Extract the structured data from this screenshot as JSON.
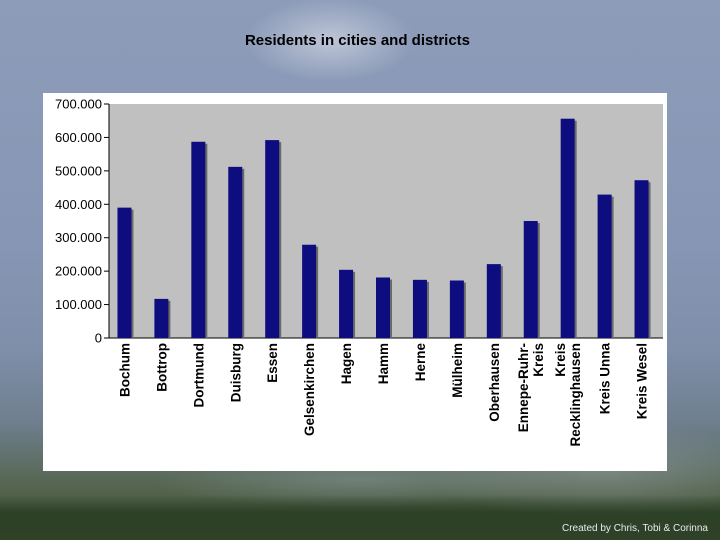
{
  "chart_data": {
    "type": "bar",
    "title": "Residents in cities and districts",
    "categories": [
      "Bochum",
      "Bottrop",
      "Dortmund",
      "Duisburg",
      "Essen",
      "Gelsenkirchen",
      "Hagen",
      "Hamm",
      "Herne",
      "Mülheim",
      "Oberhausen",
      "Ennepe-Ruhr-Kreis",
      "Kreis Recklinghausen",
      "Kreis Unna",
      "Kreis Wesel"
    ],
    "category_lines": [
      [
        "Bochum"
      ],
      [
        "Bottrop"
      ],
      [
        "Dortmund"
      ],
      [
        "Duisburg"
      ],
      [
        "Essen"
      ],
      [
        "Gelsenkirchen"
      ],
      [
        "Hagen"
      ],
      [
        "Hamm"
      ],
      [
        "Herne"
      ],
      [
        "Mülheim"
      ],
      [
        "Oberhausen"
      ],
      [
        "Ennepe-Ruhr-",
        "Kreis"
      ],
      [
        "Kreis",
        "Recklinghausen"
      ],
      [
        "Kreis Unna"
      ],
      [
        "Kreis Wesel"
      ]
    ],
    "values": [
      390000,
      117000,
      587000,
      512000,
      592000,
      279000,
      204000,
      181000,
      174000,
      172000,
      221000,
      350000,
      656000,
      429000,
      472000
    ],
    "ylim": [
      0,
      700000
    ],
    "yticks": [
      0,
      100000,
      200000,
      300000,
      400000,
      500000,
      600000,
      700000
    ],
    "ytick_labels": [
      "0",
      "100.000",
      "200.000",
      "300.000",
      "400.000",
      "500.000",
      "600.000",
      "700.000"
    ],
    "xlabel": "",
    "ylabel": "",
    "grid": false,
    "legend": "none",
    "colors": {
      "bar": "#0d0d80",
      "plot_background": "#c0c0c0",
      "panel_background": "#ffffff"
    }
  },
  "footer": {
    "credit": "Created by Chris, Tobi & Corinna"
  }
}
